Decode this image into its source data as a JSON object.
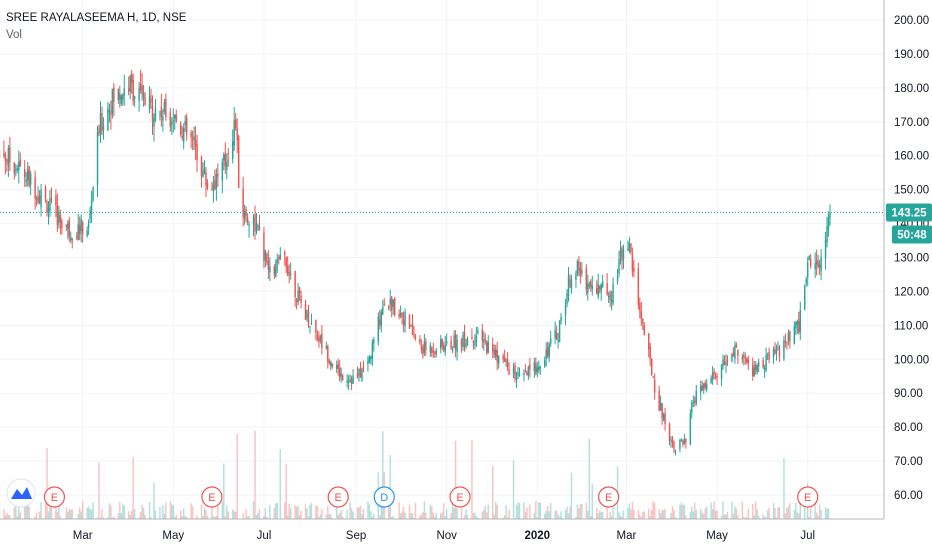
{
  "header": {
    "symbol_line": "SREE RAYALASEEMA H, 1D, NSE",
    "vol_label": "Vol"
  },
  "colors": {
    "up": "#26a69a",
    "down": "#ef5350",
    "grid": "#f0f3fa",
    "axis": "#b2b5be",
    "last_line": "#26a69a",
    "event_e": "#ef5350",
    "event_d": "#2196f3",
    "logo": "#2962ff"
  },
  "chart_data": {
    "type": "candlestick",
    "ylim": [
      50,
      205
    ],
    "y_ticks": [
      "200.00",
      "190.00",
      "180.00",
      "170.00",
      "160.00",
      "150.00",
      "140.00",
      "130.00",
      "120.00",
      "110.00",
      "100.00",
      "90.00",
      "80.00",
      "70.00",
      "60.00"
    ],
    "x_ticks": [
      "Mar",
      "May",
      "Jul",
      "Sep",
      "Nov",
      "2020",
      "Mar",
      "May",
      "Jul"
    ],
    "x_tick_dates": [
      "2019-03-01",
      "2019-05-01",
      "2019-07-01",
      "2019-09-01",
      "2019-11-01",
      "2020-01-01",
      "2020-03-01",
      "2020-05-01",
      "2020-07-01"
    ],
    "date_range": [
      "2019-01-01",
      "2020-07-16"
    ],
    "last_price": 143.25,
    "last_price_label": "143.25",
    "countdown": "50:48",
    "events": [
      {
        "type": "E",
        "date": "2019-02-10"
      },
      {
        "type": "E",
        "date": "2019-05-27"
      },
      {
        "type": "E",
        "date": "2019-08-20"
      },
      {
        "type": "D",
        "date": "2019-09-20"
      },
      {
        "type": "E",
        "date": "2019-11-10"
      },
      {
        "type": "E",
        "date": "2020-02-18"
      },
      {
        "type": "E",
        "date": "2020-07-01"
      }
    ],
    "price_path": [
      [
        "2019-01-01",
        163
      ],
      [
        "2019-01-20",
        155
      ],
      [
        "2019-02-05",
        146
      ],
      [
        "2019-02-20",
        138
      ],
      [
        "2019-03-05",
        139
      ],
      [
        "2019-03-12",
        168
      ],
      [
        "2019-03-20",
        176
      ],
      [
        "2019-04-01",
        181
      ],
      [
        "2019-04-15",
        174
      ],
      [
        "2019-05-01",
        172
      ],
      [
        "2019-05-15",
        163
      ],
      [
        "2019-05-25",
        150
      ],
      [
        "2019-06-05",
        158
      ],
      [
        "2019-06-12",
        170
      ],
      [
        "2019-06-15",
        144
      ],
      [
        "2019-06-25",
        140
      ],
      [
        "2019-07-05",
        125
      ],
      [
        "2019-07-15",
        130
      ],
      [
        "2019-07-25",
        117
      ],
      [
        "2019-08-05",
        108
      ],
      [
        "2019-08-20",
        96
      ],
      [
        "2019-09-01",
        94
      ],
      [
        "2019-09-10",
        100
      ],
      [
        "2019-09-20",
        118
      ],
      [
        "2019-10-01",
        114
      ],
      [
        "2019-10-15",
        103
      ],
      [
        "2019-11-01",
        104
      ],
      [
        "2019-11-20",
        107
      ],
      [
        "2019-12-01",
        103
      ],
      [
        "2019-12-20",
        94
      ],
      [
        "2020-01-01",
        98
      ],
      [
        "2020-01-15",
        108
      ],
      [
        "2020-01-25",
        128
      ],
      [
        "2020-02-05",
        122
      ],
      [
        "2020-02-20",
        120
      ],
      [
        "2020-03-01",
        137
      ],
      [
        "2020-03-08",
        120
      ],
      [
        "2020-03-15",
        103
      ],
      [
        "2020-03-22",
        88
      ],
      [
        "2020-04-01",
        75
      ],
      [
        "2020-04-10",
        75
      ],
      [
        "2020-04-15",
        88
      ],
      [
        "2020-05-01",
        96
      ],
      [
        "2020-05-15",
        103
      ],
      [
        "2020-05-25",
        96
      ],
      [
        "2020-06-05",
        100
      ],
      [
        "2020-06-15",
        104
      ],
      [
        "2020-06-25",
        110
      ],
      [
        "2020-07-01",
        128
      ],
      [
        "2020-07-10",
        130
      ],
      [
        "2020-07-16",
        143
      ]
    ]
  }
}
